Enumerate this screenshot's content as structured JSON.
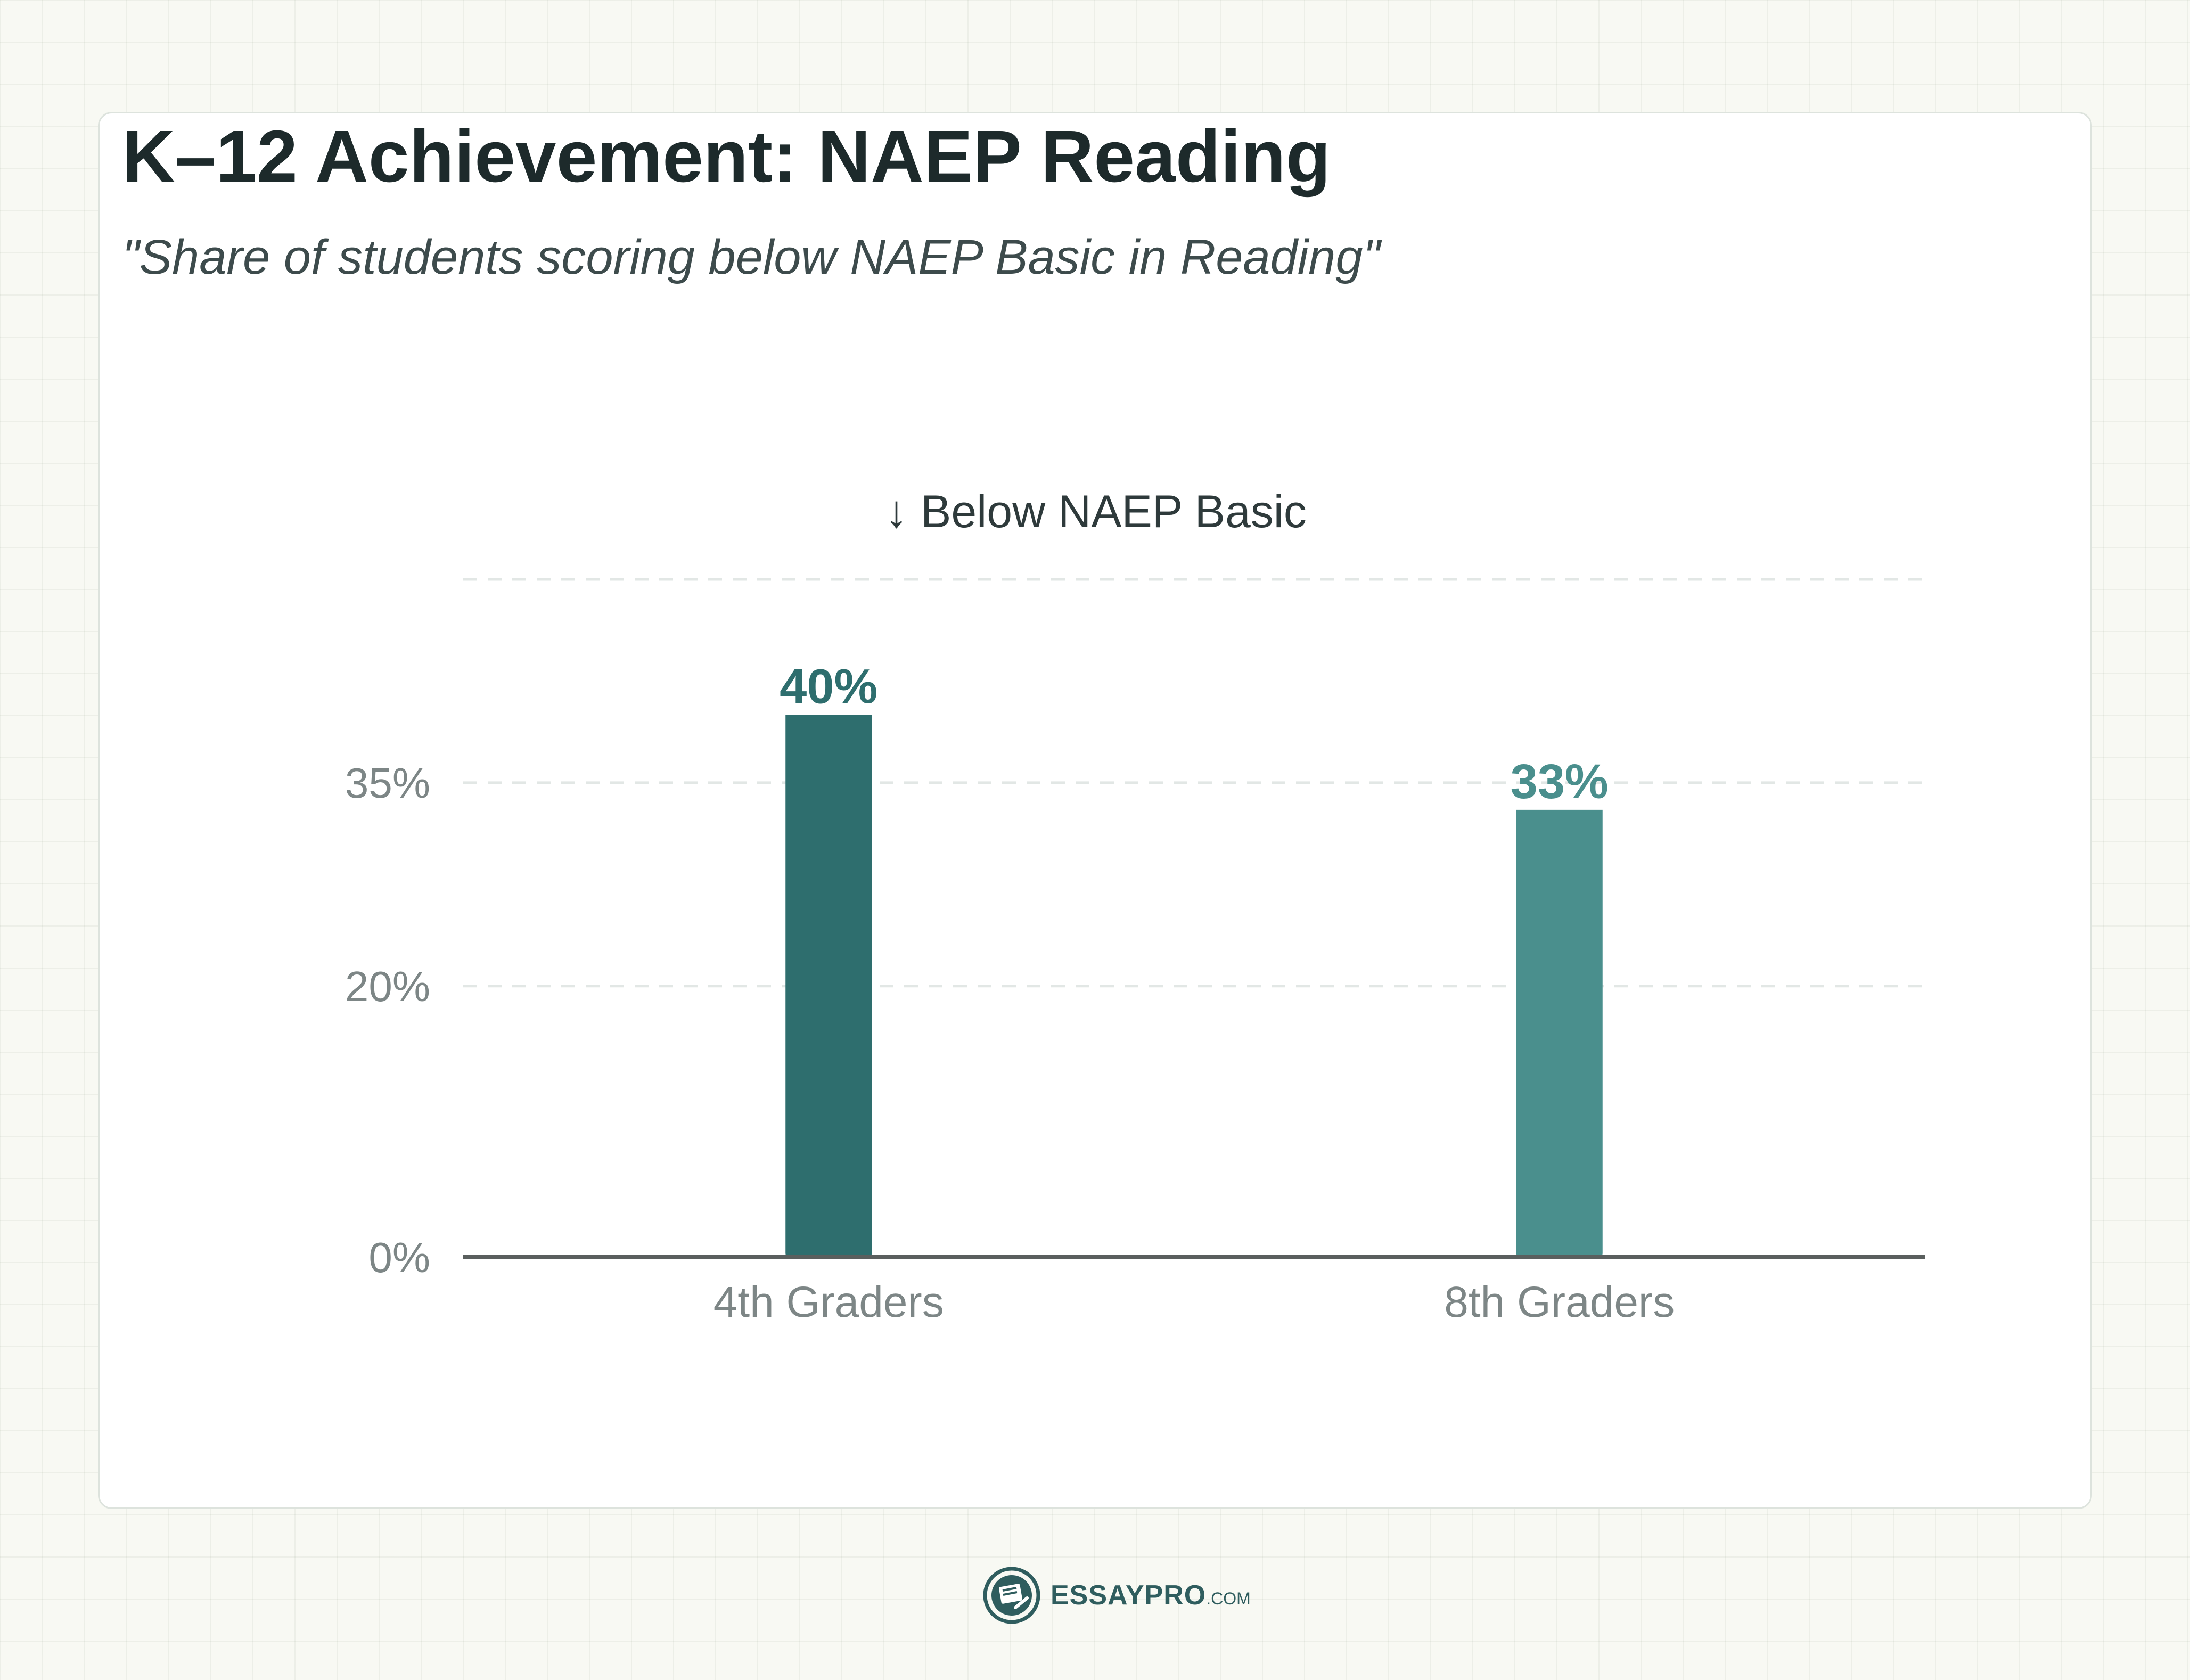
{
  "chart_data": {
    "type": "bar",
    "title": "K–12 Achievement: NAEP Reading",
    "subtitle": "\"Share of students scoring below NAEP Basic in Reading\"",
    "series_label": "↓ Below NAEP Basic",
    "categories": [
      "4th Graders",
      "8th Graders"
    ],
    "values": [
      40,
      33
    ],
    "data_labels": [
      "40%",
      "33%"
    ],
    "bar_colors": [
      "#2e6e6e",
      "#4a8f8d"
    ],
    "ylim": [
      0,
      50
    ],
    "yticks": [
      {
        "value": 0,
        "label": "0%"
      },
      {
        "value": 20,
        "label": "20%"
      },
      {
        "value": 35,
        "label": "35%"
      },
      {
        "value": 50,
        "label": ""
      }
    ],
    "grid": true
  },
  "brand": {
    "name": "ESSAYPRO",
    "tld": ".COM"
  }
}
